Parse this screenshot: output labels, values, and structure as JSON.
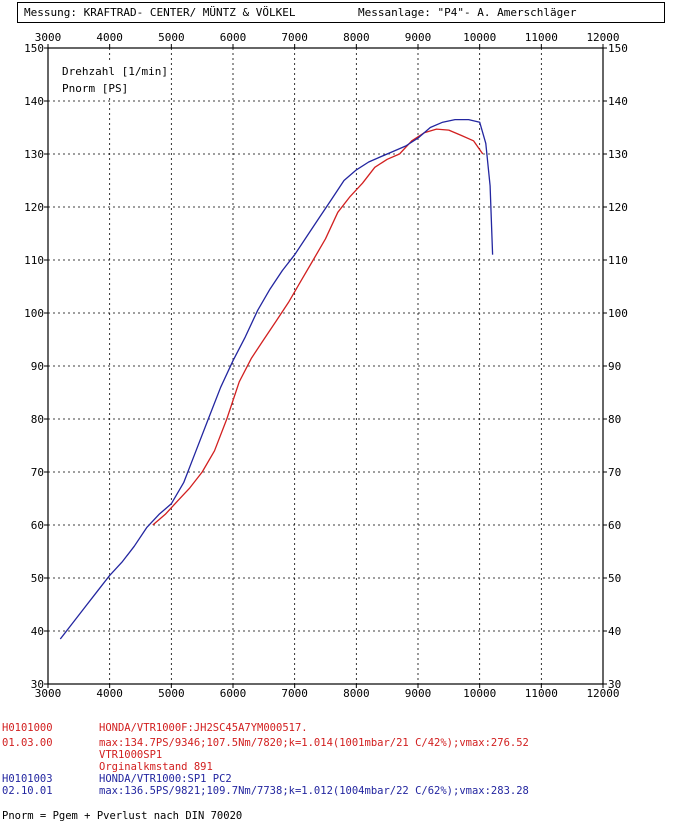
{
  "header": {
    "left": "Messung:  KRAFTRAD- CENTER/ MÜNTZ & VÖLKEL",
    "right": "Messanlage: \"P4\"- A. Amerschläger"
  },
  "chart_data": {
    "type": "line",
    "xlim": [
      3000,
      12000
    ],
    "ylim": [
      30,
      150
    ],
    "x_ticks": [
      3000,
      4000,
      5000,
      6000,
      7000,
      8000,
      9000,
      10000,
      11000,
      12000
    ],
    "y_ticks": [
      30,
      40,
      50,
      60,
      70,
      80,
      90,
      100,
      110,
      120,
      130,
      140,
      150
    ],
    "grid": true,
    "legend_lines": [
      "Drehzahl [1/min]",
      "Pnorm [PS]"
    ],
    "series": [
      {
        "color": "#d22020",
        "x": [
          4700,
          4900,
          5100,
          5300,
          5500,
          5700,
          5900,
          6100,
          6300,
          6500,
          6700,
          6900,
          7100,
          7300,
          7500,
          7700,
          7900,
          8100,
          8300,
          8500,
          8700,
          8900,
          9100,
          9300,
          9500,
          9700,
          9900,
          10050
        ],
        "y": [
          60,
          62,
          64.5,
          67,
          70,
          74,
          80,
          87,
          91.5,
          95,
          98.5,
          102,
          106,
          110,
          114,
          119,
          122,
          124.5,
          127.5,
          129,
          130,
          132.5,
          134,
          134.7,
          134.5,
          133.5,
          132.5,
          130
        ]
      },
      {
        "color": "#2326a0",
        "x": [
          3200,
          3400,
          3600,
          3800,
          4000,
          4200,
          4400,
          4600,
          4800,
          5000,
          5200,
          5400,
          5600,
          5800,
          6000,
          6200,
          6400,
          6600,
          6800,
          7000,
          7200,
          7400,
          7600,
          7800,
          8000,
          8200,
          8400,
          8600,
          8800,
          9000,
          9200,
          9400,
          9600,
          9821,
          10000,
          10100,
          10170,
          10210
        ],
        "y": [
          38.5,
          41.5,
          44.5,
          47.5,
          50.5,
          53,
          56,
          59.5,
          62,
          64,
          68,
          74,
          80,
          86,
          91,
          95.5,
          100.5,
          104.5,
          108,
          111,
          114.5,
          118,
          121.5,
          125,
          127,
          128.5,
          129.5,
          130.5,
          131.5,
          133,
          135,
          136,
          136.5,
          136.5,
          136,
          132,
          124,
          111
        ]
      }
    ]
  },
  "footer": {
    "r1_id": "H0101000",
    "r1_text": "HONDA/VTR1000F:JH2SC45A7YM000517.",
    "r1_date": "01.03.00",
    "r1_max": "max:134.7PS/9346;107.5Nm/7820;k=1.014(1001mbar/21 C/42%);vmax:276.52",
    "r1_model": "VTR1000SP1",
    "r1_note": "Orginalkmstand 891",
    "r2_id": "H0101003",
    "r2_text": "HONDA/VTR1000:SP1 PC2",
    "r2_date": "02.10.01",
    "r2_max": "max:136.5PS/9821;109.7Nm/7738;k=1.012(1004mbar/22 C/62%);vmax:283.28",
    "formula": "Pnorm = Pgem + Pverlust nach DIN 70020"
  }
}
